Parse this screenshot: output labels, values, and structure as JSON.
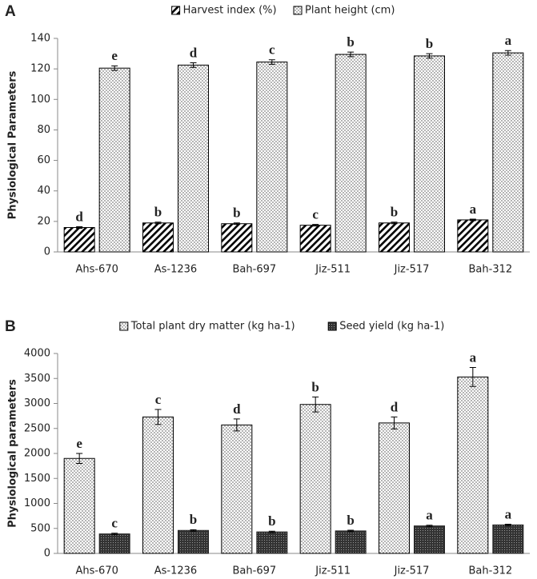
{
  "chart_data": [
    {
      "type": "bar",
      "panel": "A",
      "ylabel": "Physiological Parameters",
      "categories": [
        "Ahs-670",
        "As-1236",
        "Bah-697",
        "Jiz-511",
        "Jiz-517",
        "Bah-312"
      ],
      "series": [
        {
          "name": "Harvest index (%)",
          "pattern": "hatch",
          "color": "#000000",
          "values": [
            16,
            19,
            18.5,
            17.5,
            19,
            21
          ],
          "errors": [
            0.5,
            0.5,
            0.5,
            0.5,
            0.5,
            0.5
          ],
          "letters": [
            "d",
            "b",
            "b",
            "c",
            "b",
            "a"
          ]
        },
        {
          "name": "Plant height (cm)",
          "pattern": "dots",
          "color": "#000000",
          "values": [
            120.5,
            122.5,
            124.5,
            129.5,
            128.5,
            130.5
          ],
          "errors": [
            1.5,
            1.5,
            1.5,
            1.5,
            1.5,
            1.5
          ],
          "letters": [
            "e",
            "d",
            "c",
            "b",
            "b",
            "a"
          ]
        }
      ],
      "ylim": [
        0,
        140
      ],
      "yticks": [
        0,
        20,
        40,
        60,
        80,
        100,
        120,
        140
      ]
    },
    {
      "type": "bar",
      "panel": "B",
      "ylabel": "Physiological parameters",
      "categories": [
        "Ahs-670",
        "As-1236",
        "Bah-697",
        "Jiz-511",
        "Jiz-517",
        "Bah-312"
      ],
      "series": [
        {
          "name": "Total plant dry matter (kg ha-1)",
          "pattern": "dots",
          "color": "#000000",
          "values": [
            1900,
            2730,
            2570,
            2980,
            2610,
            3530
          ],
          "errors": [
            100,
            150,
            120,
            150,
            120,
            190
          ],
          "letters": [
            "e",
            "c",
            "d",
            "b",
            "d",
            "a"
          ]
        },
        {
          "name": "Seed yield (kg ha-1)",
          "pattern": "grid",
          "color": "#222222",
          "values": [
            390,
            460,
            430,
            450,
            550,
            570
          ],
          "errors": [
            15,
            15,
            15,
            15,
            15,
            15
          ],
          "letters": [
            "c",
            "b",
            "b",
            "b",
            "a",
            "a"
          ]
        }
      ],
      "ylim": [
        0,
        4000
      ],
      "yticks": [
        0,
        500,
        1000,
        1500,
        2000,
        2500,
        3000,
        3500,
        4000
      ]
    }
  ]
}
